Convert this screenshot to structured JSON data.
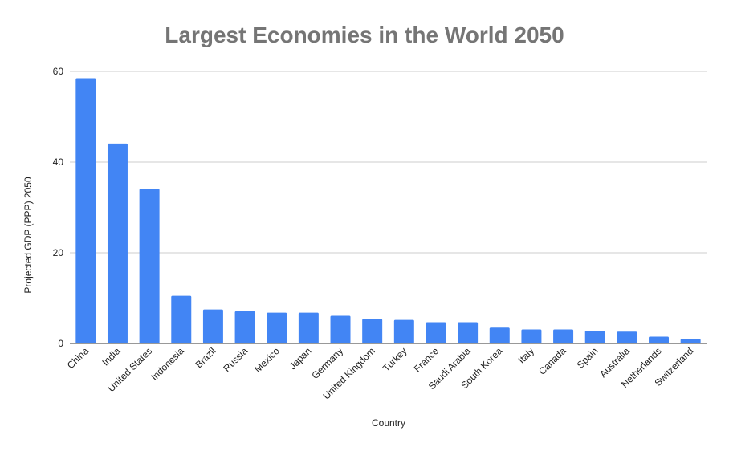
{
  "chart_data": {
    "type": "bar",
    "title": "Largest Economies in the World 2050",
    "xlabel": "Country",
    "ylabel": "Projected GDP (PPP) 2050",
    "ylim": [
      0,
      60
    ],
    "yticks": [
      0,
      20,
      40,
      60
    ],
    "grid": true,
    "bar_color": "#4285F4",
    "categories": [
      "China",
      "India",
      "United States",
      "Indonesia",
      "Brazil",
      "Russia",
      "Mexico",
      "Japan",
      "Germany",
      "United Kingdom",
      "Turkey",
      "France",
      "Saudi Arabia",
      "South Korea",
      "Italy",
      "Canada",
      "Spain",
      "Australia",
      "Netherlands",
      "Switzerland"
    ],
    "values": [
      58.5,
      44.1,
      34.1,
      10.5,
      7.5,
      7.1,
      6.8,
      6.8,
      6.1,
      5.4,
      5.2,
      4.7,
      4.7,
      3.5,
      3.1,
      3.1,
      2.8,
      2.6,
      1.5,
      1.0
    ]
  }
}
